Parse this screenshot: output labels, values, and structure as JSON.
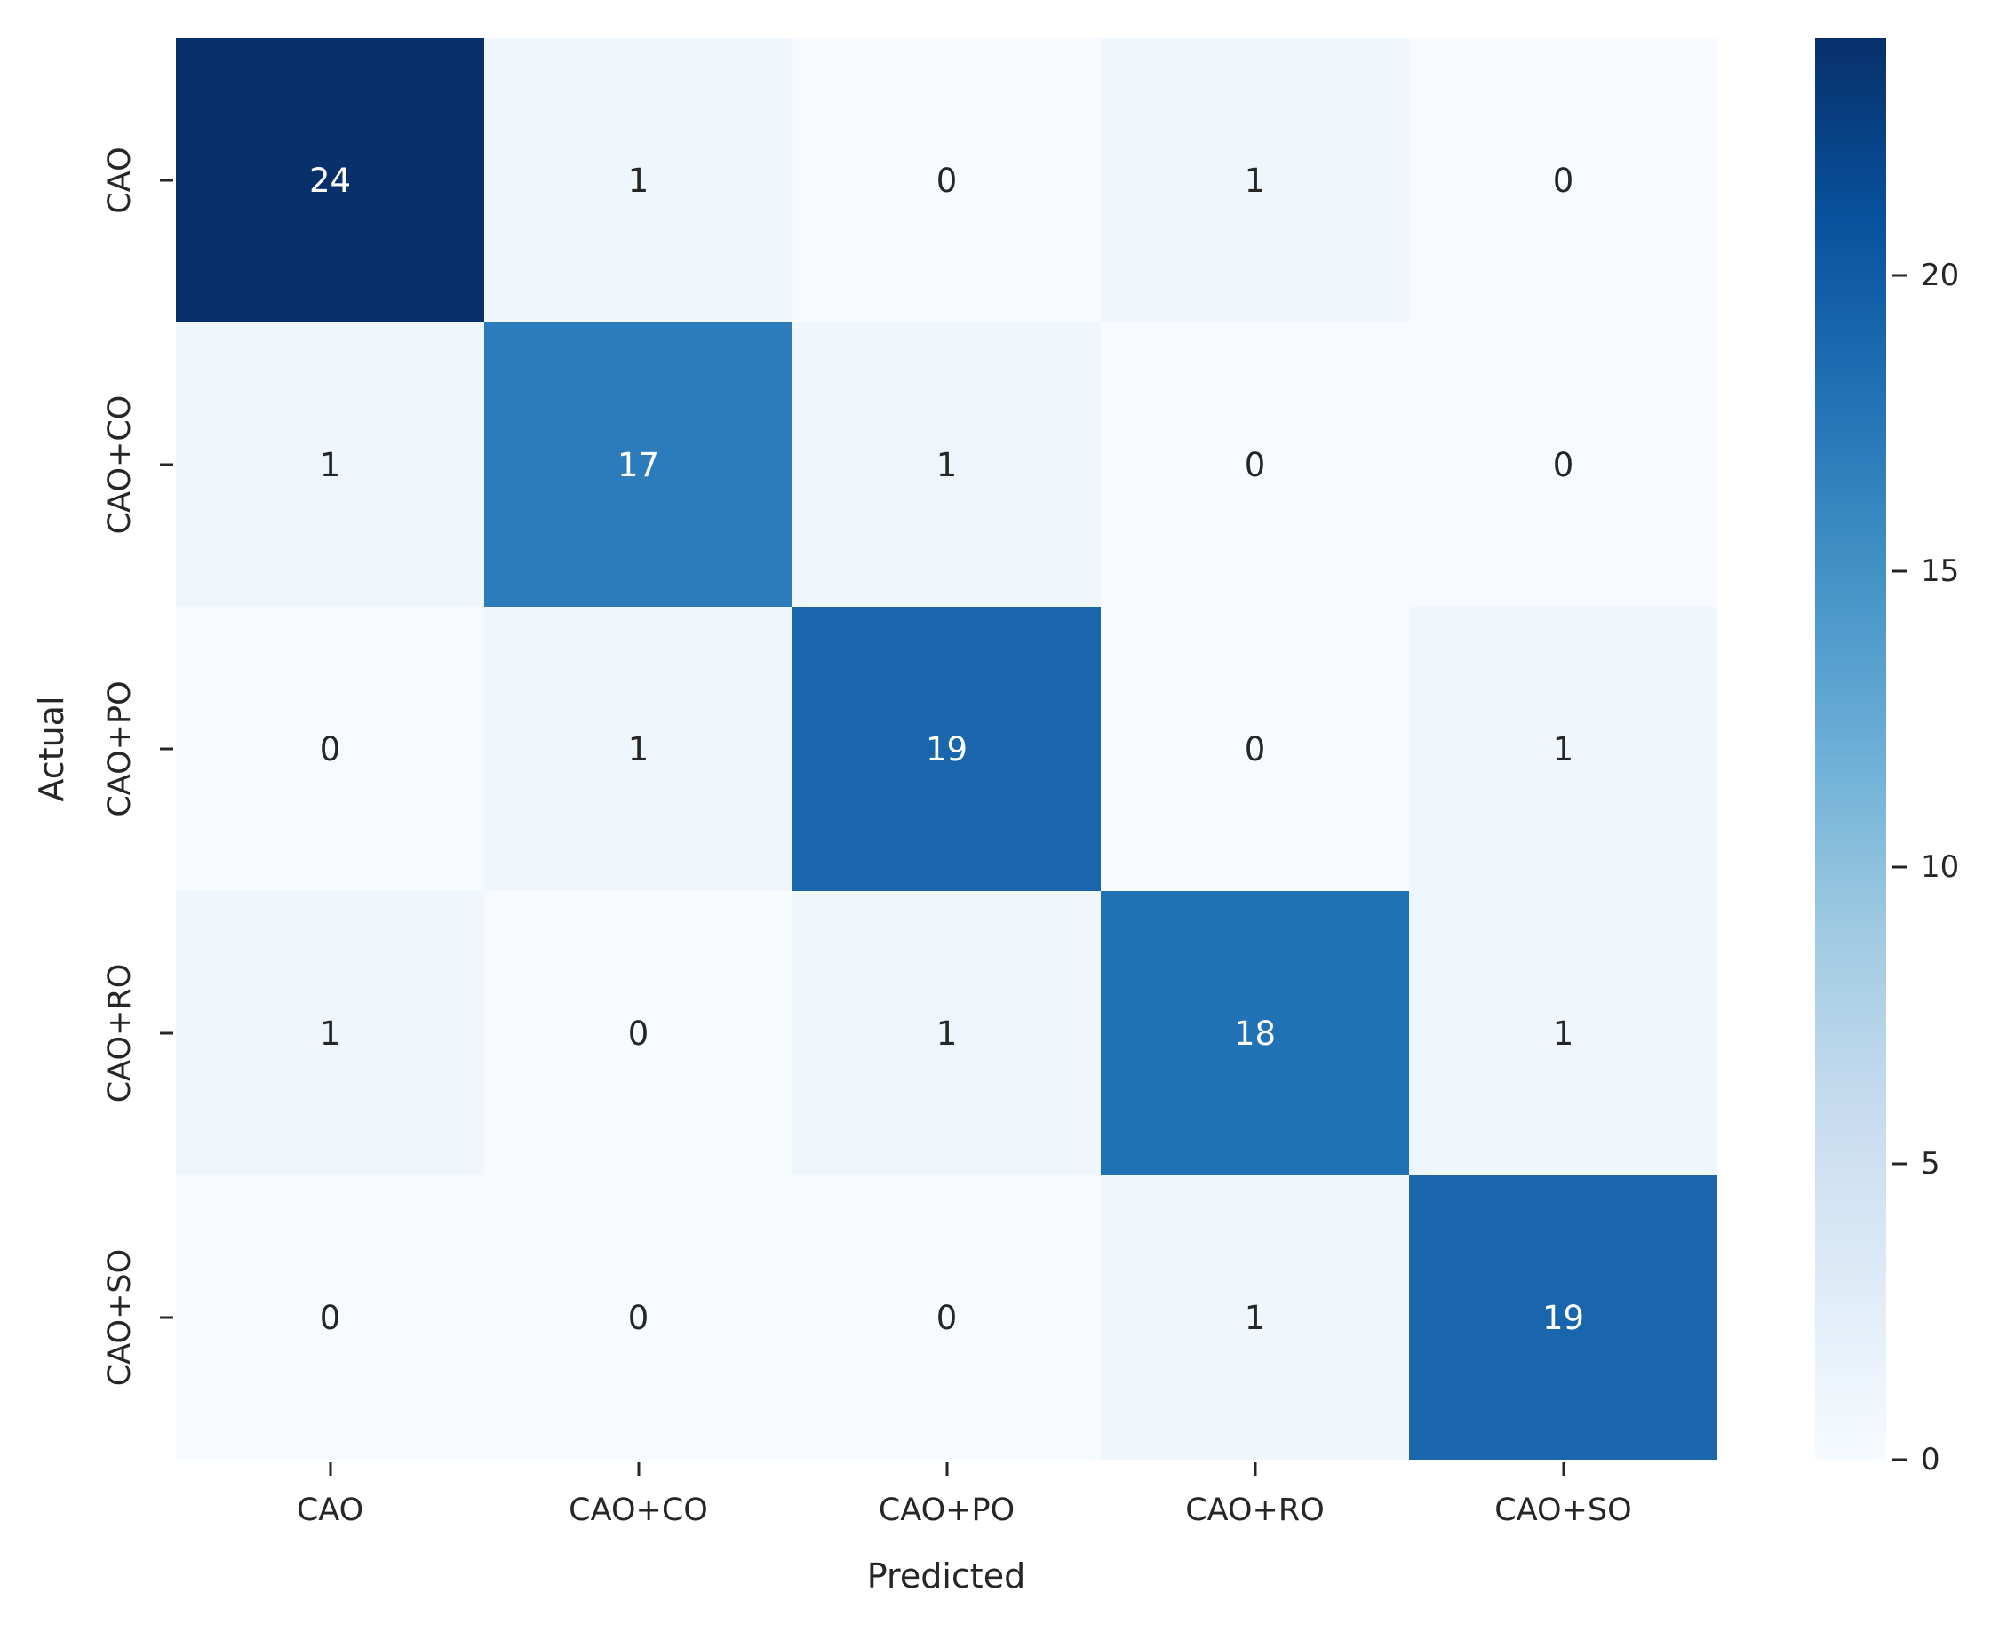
{
  "chart_data": {
    "type": "heatmap",
    "title": "",
    "xlabel": "Predicted",
    "ylabel": "Actual",
    "x_categories": [
      "CAO",
      "CAO+CO",
      "CAO+PO",
      "CAO+RO",
      "CAO+SO"
    ],
    "y_categories": [
      "CAO",
      "CAO+CO",
      "CAO+PO",
      "CAO+RO",
      "CAO+SO"
    ],
    "matrix": [
      [
        24,
        1,
        0,
        1,
        0
      ],
      [
        1,
        17,
        1,
        0,
        0
      ],
      [
        0,
        1,
        19,
        0,
        1
      ],
      [
        1,
        0,
        1,
        18,
        1
      ],
      [
        0,
        0,
        0,
        1,
        19
      ]
    ],
    "vmin": 0,
    "vmax": 24,
    "colorbar_ticks": [
      0,
      5,
      10,
      15,
      20
    ],
    "colormap_name": "Blues",
    "colormap_stops": [
      "#f7fbff",
      "#deebf7",
      "#c6dbef",
      "#9ecae1",
      "#6baed6",
      "#4292c6",
      "#2171b5",
      "#08519c",
      "#08306b"
    ],
    "annotation_text_dark": "#262626",
    "annotation_text_light": "#ffffff",
    "axis_text_color": "#262626",
    "background_color": "#ffffff",
    "legend_position": "right-colorbar",
    "grid": false
  }
}
